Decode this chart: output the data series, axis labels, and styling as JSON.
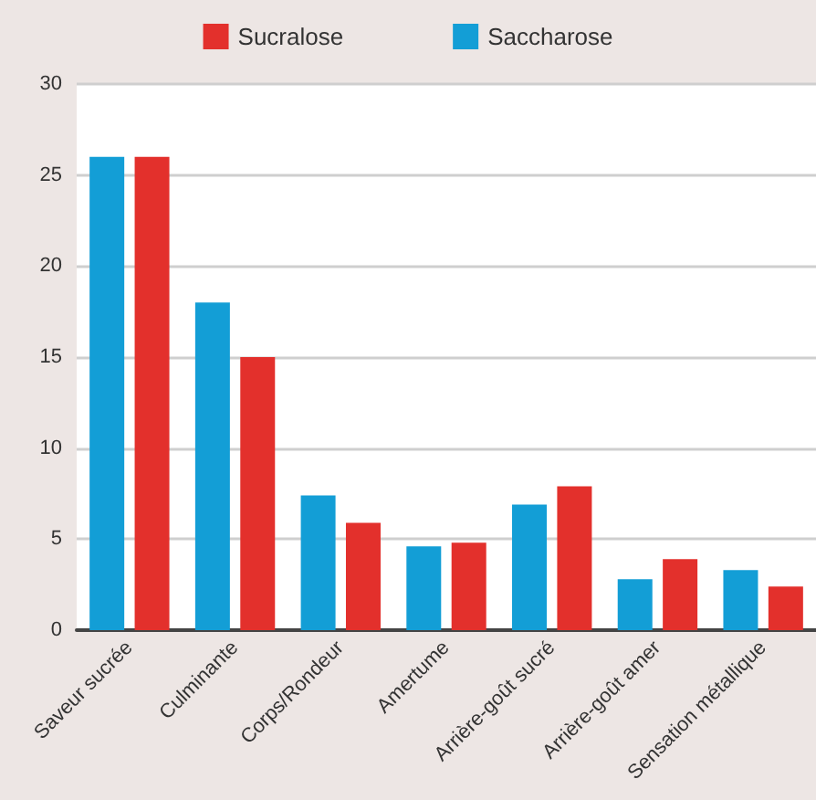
{
  "chart_data": {
    "type": "bar",
    "categories": [
      "Saveur sucrée",
      "Culminante",
      "Corps/Rondeur",
      "Amertume",
      "Arrière-goût sucré",
      "Arrière-goût amer",
      "Sensation métallique"
    ],
    "series": [
      {
        "name": "Saccharose",
        "color": "#139ed6",
        "values": [
          26,
          18,
          7.4,
          4.6,
          6.9,
          2.8,
          3.3
        ]
      },
      {
        "name": "Sucralose",
        "color": "#e3302c",
        "values": [
          26,
          15,
          5.9,
          4.8,
          7.9,
          3.9,
          2.4
        ]
      }
    ],
    "ylim": [
      0,
      30
    ],
    "yticks": [
      0,
      5,
      10,
      15,
      20,
      25,
      30
    ],
    "grid": "y",
    "legend": "top"
  }
}
